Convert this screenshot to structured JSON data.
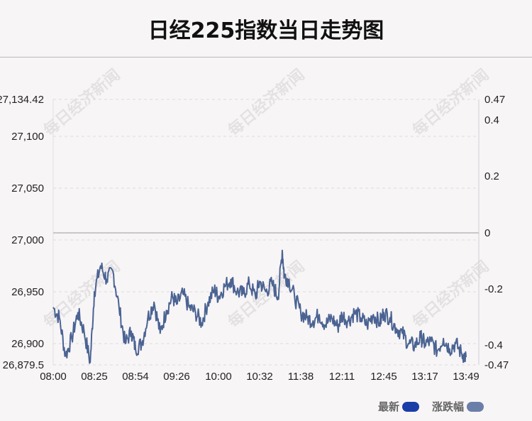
{
  "title": "日经225指数当日走势图",
  "watermark": "每日经济新闻",
  "legend": {
    "latest_label": "最新",
    "latest_color": "#1a3da8",
    "change_label": "涨跌幅",
    "change_color": "#6a7fa8"
  },
  "colors": {
    "line": "#4a6392",
    "zero_line": "#c8c8c8",
    "grid": "#dcdcdc"
  },
  "chart_data": {
    "type": "line",
    "title": "日经225指数当日走势图",
    "x_ticks": [
      "08:00",
      "08:25",
      "08:54",
      "09:26",
      "10:00",
      "10:32",
      "11:38",
      "12:11",
      "12:45",
      "13:17",
      "13:49"
    ],
    "y_left_ticks": [
      "27,134.42",
      "27,100",
      "27,050",
      "27,000",
      "26,950",
      "26,900",
      "26,879.5"
    ],
    "y_right_ticks": [
      "0.47",
      "0.4",
      "0.2",
      "0",
      "-0.2",
      "-0.4",
      "-0.47"
    ],
    "ylim_left": [
      26879.5,
      27134.42
    ],
    "ylim_right": [
      -0.47,
      0.47
    ],
    "zero_value": 27007,
    "grid": true,
    "legend_position": "bottom-right",
    "series": [
      {
        "name": "最新",
        "x_tick_index": [
          0,
          0.15,
          0.3,
          0.45,
          0.6,
          0.75,
          0.9,
          1.0,
          1.15,
          1.3,
          1.45,
          1.6,
          1.75,
          1.9,
          2.0,
          2.15,
          2.3,
          2.45,
          2.6,
          2.75,
          2.9,
          3.0,
          3.15,
          3.3,
          3.45,
          3.6,
          3.75,
          3.9,
          4.0,
          4.15,
          4.3,
          4.45,
          4.6,
          4.75,
          4.9,
          5.0,
          5.15,
          5.3,
          5.45,
          5.55,
          5.6,
          5.7,
          5.85,
          6.0,
          6.15,
          6.3,
          6.45,
          6.6,
          6.75,
          6.9,
          7.0,
          7.15,
          7.3,
          7.45,
          7.6,
          7.75,
          7.9,
          8.0,
          8.15,
          8.3,
          8.45,
          8.6,
          8.75,
          8.9,
          9.0,
          9.15,
          9.3,
          9.45,
          9.6,
          9.75,
          9.9,
          10.0
        ],
        "values": [
          26935,
          26925,
          26888,
          26905,
          26930,
          26912,
          26882,
          26950,
          26975,
          26962,
          26970,
          26935,
          26900,
          26912,
          26895,
          26900,
          26925,
          26940,
          26910,
          26932,
          26945,
          26938,
          26948,
          26935,
          26930,
          26920,
          26940,
          26952,
          26945,
          26955,
          26962,
          26950,
          26948,
          26958,
          26945,
          26960,
          26950,
          26958,
          26945,
          26990,
          26965,
          26962,
          26945,
          26930,
          26925,
          26922,
          26928,
          26918,
          26925,
          26916,
          26928,
          26922,
          26930,
          26925,
          26918,
          26928,
          26920,
          26930,
          26925,
          26915,
          26910,
          26900,
          26898,
          26906,
          26900,
          26902,
          26893,
          26905,
          26895,
          26900,
          26890,
          26887
        ]
      }
    ]
  }
}
